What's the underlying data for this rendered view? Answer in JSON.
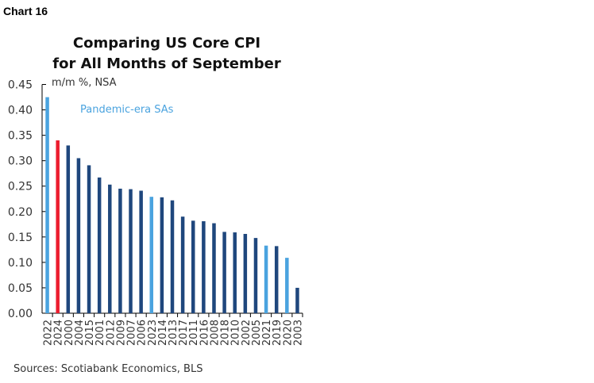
{
  "chart_label": "Chart 16",
  "source": "Sources: Scotiabank Economics, BLS",
  "chart_data": {
    "type": "bar",
    "title": "Comparing US Core CPI for All Months of September",
    "title_lines": [
      "Comparing US Core CPI",
      "for All Months of September"
    ],
    "ylabel": "m/m %, NSA",
    "annotation": "Pandemic-era SAs",
    "ylim": [
      0,
      0.45
    ],
    "yticks": [
      "0.00",
      "0.05",
      "0.10",
      "0.15",
      "0.20",
      "0.25",
      "0.30",
      "0.35",
      "0.40",
      "0.45"
    ],
    "grid": false,
    "categories": [
      "2022",
      "2024",
      "2000",
      "2004",
      "2015",
      "2001",
      "2012",
      "2009",
      "2007",
      "2006",
      "2023",
      "2014",
      "2013",
      "2017",
      "2011",
      "2016",
      "2008",
      "2018",
      "2010",
      "2002",
      "2005",
      "2021",
      "2019",
      "2020",
      "2003"
    ],
    "values": [
      0.425,
      0.34,
      0.33,
      0.305,
      0.291,
      0.267,
      0.253,
      0.245,
      0.244,
      0.241,
      0.229,
      0.228,
      0.222,
      0.19,
      0.182,
      0.181,
      0.177,
      0.16,
      0.159,
      0.156,
      0.148,
      0.133,
      0.132,
      0.109,
      0.05
    ],
    "bar_groups": [
      "pandemic",
      "current",
      "other",
      "other",
      "other",
      "other",
      "other",
      "other",
      "other",
      "other",
      "pandemic",
      "other",
      "other",
      "other",
      "other",
      "other",
      "other",
      "other",
      "other",
      "other",
      "other",
      "pandemic",
      "other",
      "pandemic",
      "other"
    ],
    "colors": {
      "other": "#1f477d",
      "pandemic": "#4aa3df",
      "current": "#ec1c2e",
      "annotation": "#4aa3df"
    }
  }
}
